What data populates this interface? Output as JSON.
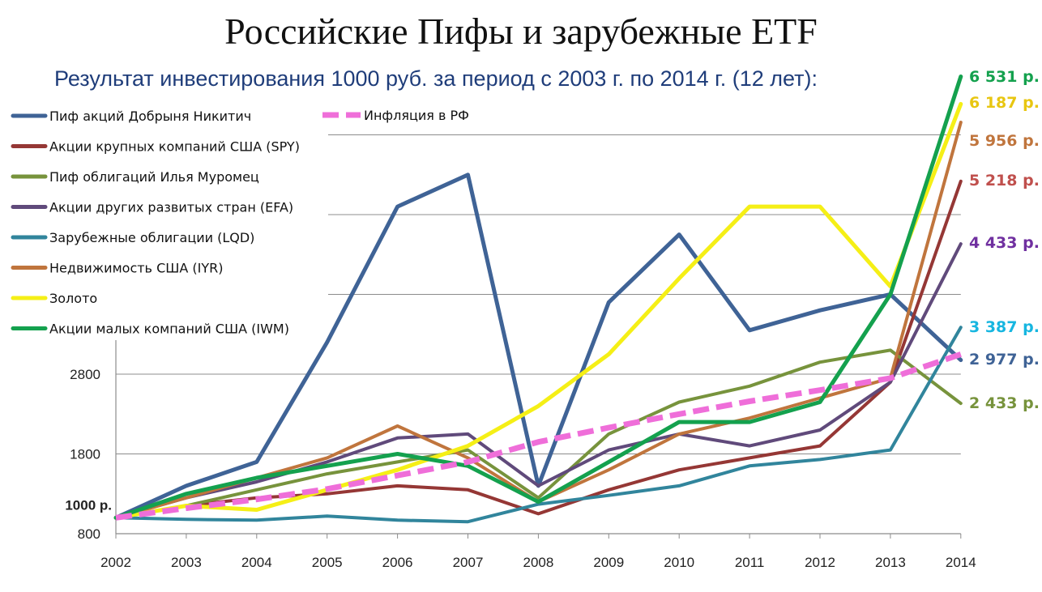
{
  "chart_data": {
    "type": "line",
    "title": "Российские Пифы и зарубежные ETF",
    "subtitle": "Результат инвестирования 1000 руб.  за период с 2003 г. по 2014 г. (12 лет):",
    "x": [
      "2002",
      "2003",
      "2004",
      "2005",
      "2006",
      "2007",
      "2008",
      "2009",
      "2010",
      "2011",
      "2012",
      "2013",
      "2014"
    ],
    "y_ticks": [
      "800",
      "1800",
      "2800"
    ],
    "start_label": "1000 р.",
    "series": [
      {
        "name": "Пиф акций Добрыня Никитич",
        "color": "#3f6396",
        "width": 5,
        "dashed": false,
        "values": [
          1000,
          1400,
          1700,
          3200,
          4900,
          5300,
          1400,
          3700,
          4550,
          3350,
          3600,
          3800,
          2977
        ],
        "end_label": "2 977 р.",
        "end_color": "#3f6396"
      },
      {
        "name": "Акции крупных компаний США (SPY)",
        "color": "#953735",
        "width": 4,
        "dashed": false,
        "values": [
          1000,
          1150,
          1250,
          1300,
          1400,
          1350,
          1050,
          1350,
          1600,
          1750,
          1900,
          2700,
          5218
        ],
        "end_label": "5 218 р.",
        "end_color": "#c0504d"
      },
      {
        "name": "Пиф облигаций Илья Муромец",
        "color": "#77933c",
        "width": 4,
        "dashed": false,
        "values": [
          1000,
          1150,
          1350,
          1550,
          1700,
          1850,
          1250,
          2050,
          2450,
          2650,
          2950,
          3100,
          2433
        ],
        "end_label": "2 433 р.",
        "end_color": "#77933c"
      },
      {
        "name": "Акции других развитых стран (EFA)",
        "color": "#604a7b",
        "width": 4,
        "dashed": false,
        "values": [
          1000,
          1250,
          1450,
          1700,
          2000,
          2050,
          1400,
          1850,
          2050,
          1900,
          2100,
          2700,
          4433
        ],
        "end_label": "4 433 р.",
        "end_color": "#7030a0"
      },
      {
        "name": "Зарубежные облигации (LQD)",
        "color": "#31859c",
        "width": 4,
        "dashed": false,
        "values": [
          1000,
          980,
          970,
          1020,
          970,
          950,
          1170,
          1280,
          1400,
          1650,
          1730,
          1850,
          3387
        ],
        "end_label": "3 387 р.",
        "end_color": "#17b6e0"
      },
      {
        "name": "Недвижимость США (IYR)",
        "color": "#c0753d",
        "width": 4,
        "dashed": false,
        "values": [
          1000,
          1250,
          1500,
          1750,
          2150,
          1750,
          1200,
          1600,
          2050,
          2250,
          2500,
          2750,
          5956
        ],
        "end_label": "5 956 р.",
        "end_color": "#c0753d"
      },
      {
        "name": "Золото",
        "color": "#f5ef16",
        "width": 5,
        "dashed": false,
        "values": [
          1000,
          1150,
          1100,
          1350,
          1600,
          1900,
          2400,
          3050,
          4000,
          4900,
          4900,
          3900,
          6187
        ],
        "end_label": "6 187 р.",
        "end_color": "#e8c611"
      },
      {
        "name": "Акции малых компаний США (IWM)",
        "color": "#14a14e",
        "width": 5,
        "dashed": false,
        "values": [
          1000,
          1300,
          1500,
          1650,
          1800,
          1650,
          1200,
          1700,
          2200,
          2200,
          2450,
          3800,
          6531
        ],
        "end_label": "6 531 р.",
        "end_color": "#14a14e"
      },
      {
        "name": "Инфляция в РФ",
        "color": "#ef6ed9",
        "width": 7,
        "dashed": true,
        "values": [
          1000,
          1120,
          1230,
          1360,
          1530,
          1700,
          1950,
          2130,
          2300,
          2460,
          2600,
          2750,
          3050
        ],
        "end_label": "",
        "end_color": "#ef6ed9"
      }
    ]
  }
}
